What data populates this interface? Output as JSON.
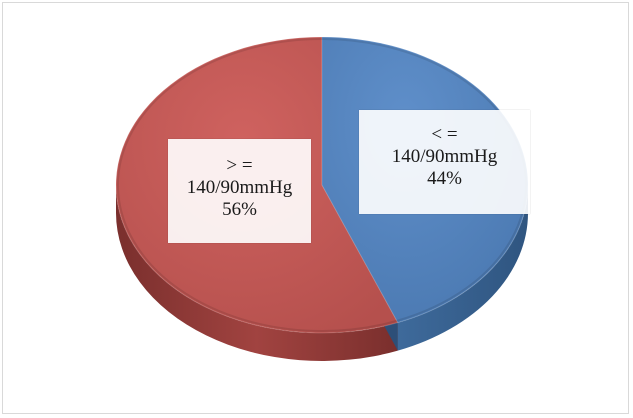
{
  "chart_data": {
    "type": "pie",
    "style": "3d",
    "title": "",
    "slices": [
      {
        "label_lines": [
          "> =",
          "140/90mmHg"
        ],
        "percent_label": "56%",
        "value": 56,
        "color": "#c0504d"
      },
      {
        "label_lines": [
          "< =",
          "140/90mmHg"
        ],
        "percent_label": "44%",
        "value": 44,
        "color": "#4f81bd"
      }
    ],
    "legend": "none"
  }
}
